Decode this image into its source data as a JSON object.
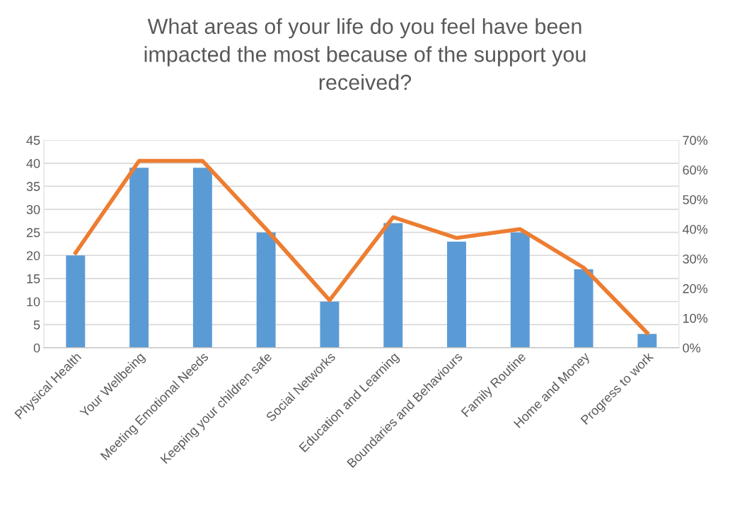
{
  "chart_data": {
    "type": "bar",
    "title": "What areas of your life do you feel have been impacted the most because of the support you received?",
    "categories": [
      "Physical Health",
      "Your Wellbeing",
      "Meeting Emotional Needs",
      "Keeping your children safe",
      "Social Networks",
      "Education and Learning",
      "Boundaries and Behaviours",
      "Family Routine",
      "Home and Money",
      "Progress to work"
    ],
    "series": [
      {
        "color": "#5b9bd5",
        "values": [
          20,
          39,
          39,
          25,
          10,
          27,
          23,
          25,
          17,
          3
        ]
      },
      {
        "type": "line",
        "axis": "y2",
        "color": "#ed7d31",
        "values": [
          32,
          63,
          63,
          40,
          16,
          44,
          37,
          40,
          27,
          5
        ]
      }
    ],
    "ylim": [
      0,
      45
    ],
    "yticks": [
      0,
      5,
      10,
      15,
      20,
      25,
      30,
      35,
      40,
      45
    ],
    "y2lim": [
      0,
      70
    ],
    "y2ticks": [
      {
        "value": 0,
        "label": "0%"
      },
      {
        "value": 10,
        "label": "10%"
      },
      {
        "value": 20,
        "label": "20%"
      },
      {
        "value": 30,
        "label": "30%"
      },
      {
        "value": 40,
        "label": "40%"
      },
      {
        "value": 50,
        "label": "50%"
      },
      {
        "value": 60,
        "label": "60%"
      },
      {
        "value": 70,
        "label": "70%"
      }
    ],
    "grid": "y",
    "marker": "none",
    "line_style": "solid"
  }
}
